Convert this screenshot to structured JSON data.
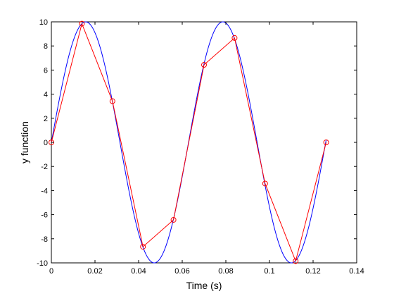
{
  "chart_data": {
    "type": "line",
    "xlabel": "Time (s)",
    "ylabel": "y function",
    "xlim": [
      0,
      0.14
    ],
    "ylim": [
      -10,
      10
    ],
    "xticks": [
      0,
      0.02,
      0.04,
      0.06,
      0.08,
      0.1,
      0.12,
      0.14
    ],
    "xtick_labels": [
      "0",
      "0.02",
      "0.04",
      "0.06",
      "0.08",
      "0.1",
      "0.12",
      "0.14"
    ],
    "yticks": [
      -10,
      -8,
      -6,
      -4,
      -2,
      0,
      2,
      4,
      6,
      8,
      10
    ],
    "ytick_labels": [
      "-10",
      "-8",
      "-6",
      "-4",
      "-2",
      "0",
      "2",
      "4",
      "6",
      "8",
      "10"
    ],
    "grid": false,
    "series": [
      {
        "style": "smooth-line",
        "color": "#0000ff",
        "function": "10*sin(2*pi*f*t)",
        "frequency_hz": 15.9,
        "amplitude": 10,
        "x_range": [
          0,
          0.126
        ]
      },
      {
        "style": "line-with-circle-markers",
        "color": "#ff0000",
        "x": [
          0,
          0.014,
          0.028,
          0.042,
          0.056,
          0.07,
          0.084,
          0.098,
          0.112,
          0.126
        ],
        "y": [
          0,
          9.85,
          3.42,
          -8.66,
          -6.43,
          6.43,
          8.66,
          -3.42,
          -9.85,
          0
        ]
      }
    ]
  }
}
